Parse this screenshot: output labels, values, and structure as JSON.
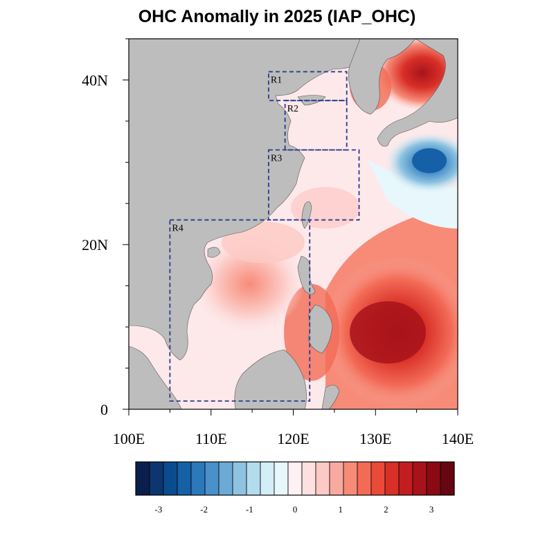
{
  "title": "OHC Anomally in 2025 (IAP_OHC)",
  "map": {
    "lon_range": [
      100,
      140
    ],
    "lat_range": [
      0,
      45
    ],
    "x_ticks": [
      "100E",
      "110E",
      "120E",
      "130E",
      "140E"
    ],
    "y_ticks": [
      "0",
      "20N",
      "40N"
    ],
    "land_color": "#bdbdbd",
    "regions": [
      {
        "name": "R1",
        "lon": [
          117,
          126.5
        ],
        "lat": [
          37.5,
          41
        ]
      },
      {
        "name": "R2",
        "lon": [
          119,
          126.5
        ],
        "lat": [
          31.5,
          37.5
        ]
      },
      {
        "name": "R3",
        "lon": [
          117,
          128
        ],
        "lat": [
          23,
          31.5
        ]
      },
      {
        "name": "R4",
        "lon": [
          105,
          122
        ],
        "lat": [
          1,
          23
        ]
      }
    ]
  },
  "colorbar": {
    "range": [
      -3.5,
      3.5
    ],
    "labels": [
      "-3",
      "-2",
      "-1",
      "0",
      "1",
      "2",
      "3"
    ],
    "label_values": [
      -3,
      -2,
      -1,
      0,
      1,
      2,
      3
    ],
    "colors": [
      "#0b1f4d",
      "#0d3570",
      "#0b4c8f",
      "#1560a6",
      "#2b78bb",
      "#4a90c9",
      "#6caad6",
      "#8ec4e1",
      "#b3dced",
      "#d4eef8",
      "#e8f7fc",
      "#fff0f3",
      "#fde0e0",
      "#fcc9c4",
      "#f9aaa0",
      "#f78b78",
      "#f36b56",
      "#ea4a38",
      "#d82f27",
      "#c21d20",
      "#a8131b",
      "#8a0a14",
      "#650610"
    ]
  },
  "anomaly_fields": {
    "sea_base_color": "#fde8ea",
    "warm_pools": [
      "western pacific warm core",
      "east of philippines",
      "korea east sea",
      "south china sea central"
    ],
    "cold_pools": [
      "south of japan"
    ]
  }
}
